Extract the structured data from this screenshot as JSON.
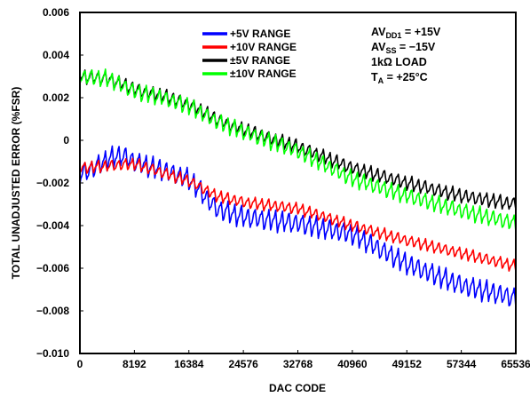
{
  "chart_data": {
    "type": "line",
    "xlabel": "DAC CODE",
    "ylabel": "TOTAL UNADJUSTED ERROR (%FSR)",
    "xlim": [
      0,
      65536
    ],
    "ylim": [
      -0.01,
      0.006
    ],
    "x_ticks": [
      "0",
      "8192",
      "16384",
      "24576",
      "32768",
      "40960",
      "49152",
      "57344",
      "65536"
    ],
    "y_ticks": [
      "0.006",
      "0.004",
      "0.002",
      "0",
      "−0.002",
      "−0.004",
      "−0.006",
      "−0.008",
      "−0.010"
    ],
    "grid": false,
    "legend_position": "top-center",
    "series": [
      {
        "name": "+5V RANGE",
        "color": "#0000ff",
        "x": [
          0,
          2048,
          4096,
          6144,
          8192,
          12288,
          16384,
          20480,
          24576,
          32768,
          40960,
          49152,
          57344,
          61440,
          65536
        ],
        "values": [
          -0.0016,
          -0.0013,
          -0.0009,
          -0.0007,
          -0.001,
          -0.0014,
          -0.0018,
          -0.0032,
          -0.0036,
          -0.0039,
          -0.0044,
          -0.0058,
          -0.0068,
          -0.0071,
          -0.0074
        ],
        "ripple": 0.0009
      },
      {
        "name": "+10V RANGE",
        "color": "#ff0000",
        "x": [
          0,
          4096,
          8192,
          12288,
          16384,
          20480,
          24576,
          32768,
          40960,
          49152,
          57344,
          65536
        ],
        "values": [
          -0.0013,
          -0.0012,
          -0.0011,
          -0.0015,
          -0.0019,
          -0.0026,
          -0.0029,
          -0.0032,
          -0.004,
          -0.0047,
          -0.0053,
          -0.0059
        ],
        "ripple": 0.0005
      },
      {
        "name": "±5V RANGE",
        "color": "#000000",
        "x": [
          0,
          4096,
          8192,
          12288,
          16384,
          20480,
          24576,
          32768,
          40960,
          49152,
          57344,
          65536
        ],
        "values": [
          0.003,
          0.0029,
          0.0024,
          0.0021,
          0.0017,
          0.001,
          0.0005,
          -0.0003,
          -0.0013,
          -0.002,
          -0.0026,
          -0.003
        ],
        "ripple": 0.0006
      },
      {
        "name": "±10V RANGE",
        "color": "#00ff00",
        "x": [
          0,
          4096,
          8192,
          12288,
          16384,
          20480,
          24576,
          32768,
          40960,
          49152,
          57344,
          65536
        ],
        "values": [
          0.003,
          0.0029,
          0.0023,
          0.002,
          0.0016,
          0.0009,
          0.0004,
          -0.0005,
          -0.0018,
          -0.0026,
          -0.0033,
          -0.0039
        ],
        "ripple": 0.0007
      }
    ],
    "conditions": [
      {
        "main": "AV",
        "sub": "DD1",
        "rest": " = +15V"
      },
      {
        "main": "AV",
        "sub": "SS",
        "rest": " = −15V"
      },
      {
        "main": "1kΩ LOAD",
        "sub": "",
        "rest": ""
      },
      {
        "main": "T",
        "sub": "A",
        "rest": " = +25°C"
      }
    ]
  }
}
